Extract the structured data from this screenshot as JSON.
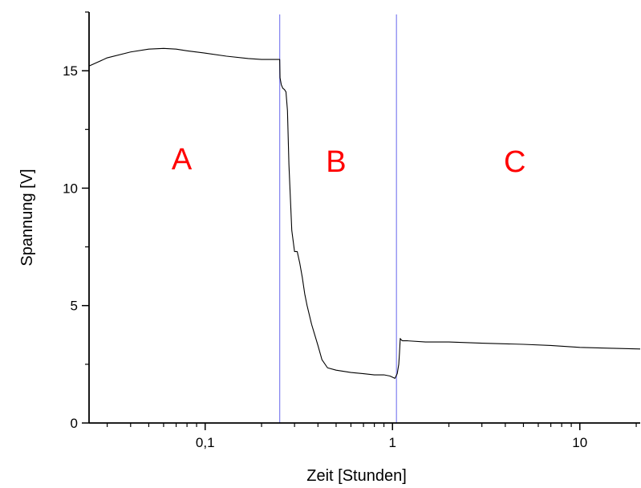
{
  "chart_data": {
    "type": "line",
    "title": "",
    "xlabel": "Zeit [Stunden]",
    "ylabel": "Spannung [V]",
    "xscale": "log",
    "xlim": [
      0.024,
      21
    ],
    "ylim": [
      0,
      17.5
    ],
    "grid": false,
    "legend": "none",
    "line_color": "#000000",
    "marker_line_color": "#7f7ff0",
    "region_label_color": "#ff0000",
    "x_ticks": [
      {
        "value": 0.1,
        "label": "0,1"
      },
      {
        "value": 1,
        "label": "1"
      },
      {
        "value": 10,
        "label": "10"
      }
    ],
    "x_minor_ticks": [
      0.03,
      0.04,
      0.05,
      0.06,
      0.07,
      0.08,
      0.09,
      0.2,
      0.3,
      0.4,
      0.5,
      0.6,
      0.7,
      0.8,
      0.9,
      2,
      3,
      4,
      5,
      6,
      7,
      8,
      9,
      20
    ],
    "y_ticks": [
      {
        "value": 0,
        "label": "0"
      },
      {
        "value": 5,
        "label": "5"
      },
      {
        "value": 10,
        "label": "10"
      },
      {
        "value": 15,
        "label": "15"
      }
    ],
    "y_minor_ticks": [
      2.5,
      7.5,
      12.5,
      17.5
    ],
    "vertical_lines": [
      0.25,
      1.05
    ],
    "regions": [
      {
        "label": "A",
        "x": 0.075,
        "y": 10.8
      },
      {
        "label": "B",
        "x": 0.5,
        "y": 10.7
      },
      {
        "label": "C",
        "x": 4.5,
        "y": 10.7
      }
    ],
    "series": [
      {
        "x": [
          0.024,
          0.03,
          0.04,
          0.05,
          0.06,
          0.07,
          0.08,
          0.1,
          0.13,
          0.17,
          0.2,
          0.24,
          0.25,
          0.251,
          0.255,
          0.26,
          0.265,
          0.27,
          0.275,
          0.28,
          0.29,
          0.3,
          0.31,
          0.32,
          0.33,
          0.34,
          0.35,
          0.37,
          0.4,
          0.42,
          0.45,
          0.5,
          0.6,
          0.7,
          0.8,
          0.9,
          0.97,
          1.03,
          1.06,
          1.08,
          1.09,
          1.1,
          1.11,
          1.13,
          1.2,
          1.5,
          2,
          3,
          5,
          7,
          10,
          15,
          21
        ],
        "y": [
          15.2,
          15.55,
          15.8,
          15.92,
          15.95,
          15.92,
          15.85,
          15.75,
          15.62,
          15.52,
          15.48,
          15.48,
          15.48,
          14.7,
          14.4,
          14.25,
          14.2,
          14.1,
          13.3,
          11.0,
          8.2,
          7.3,
          7.3,
          6.8,
          6.2,
          5.5,
          5.0,
          4.2,
          3.3,
          2.7,
          2.35,
          2.25,
          2.15,
          2.1,
          2.05,
          2.05,
          2.0,
          1.9,
          2.1,
          2.5,
          3.0,
          3.6,
          3.55,
          3.5,
          3.5,
          3.45,
          3.45,
          3.4,
          3.35,
          3.3,
          3.22,
          3.18,
          3.15
        ]
      }
    ]
  }
}
